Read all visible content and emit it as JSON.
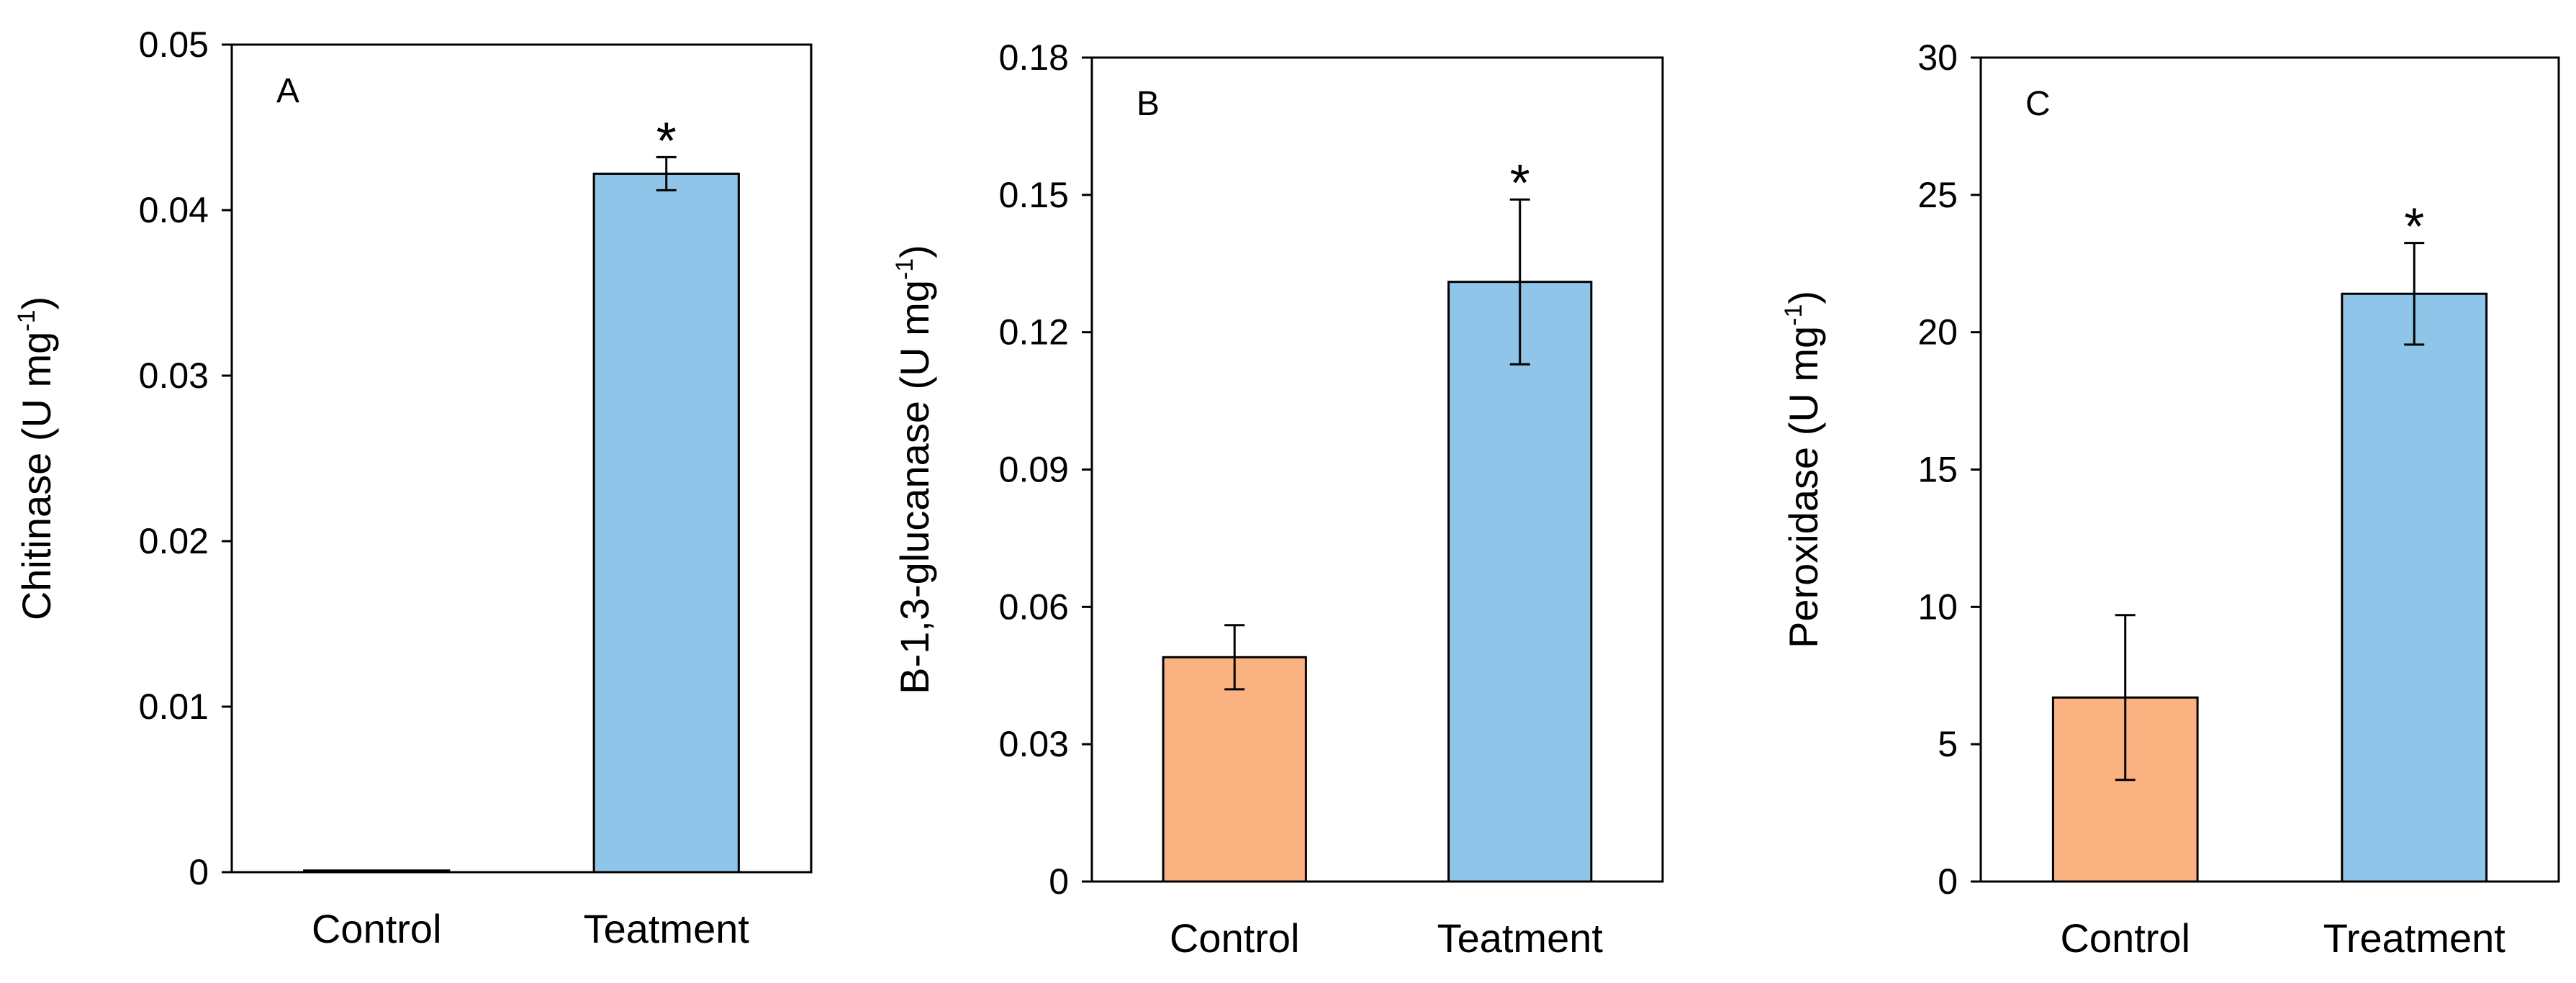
{
  "chart_data": [
    {
      "type": "bar",
      "panel_label": "A",
      "title": "",
      "ylabel": {
        "main": "Chitinase (U mg",
        "sup": "-1",
        "tail": ")"
      },
      "xlabel": "",
      "categories": [
        "Control",
        "Teatment"
      ],
      "values": [
        0.0001,
        0.0422
      ],
      "errors": [
        0,
        0.001
      ],
      "significance": [
        "",
        "*"
      ],
      "colors": [
        "#FBB281",
        "#8EC5E8"
      ],
      "ylim": [
        0,
        0.05
      ],
      "yticks": [
        0,
        0.01,
        0.02,
        0.03,
        0.04,
        0.05
      ],
      "ytick_labels": [
        "0",
        "0.01",
        "0.02",
        "0.03",
        "0.04",
        "0.05"
      ]
    },
    {
      "type": "bar",
      "panel_label": "B",
      "title": "",
      "ylabel": {
        "main": "B-1,3-glucanase (U mg",
        "sup": "-1",
        "tail": ")"
      },
      "xlabel": "",
      "categories": [
        "Control",
        "Teatment"
      ],
      "values": [
        0.049,
        0.131
      ],
      "errors": [
        0.007,
        0.018
      ],
      "significance": [
        "",
        "*"
      ],
      "colors": [
        "#FBB281",
        "#8EC5E8"
      ],
      "ylim": [
        0,
        0.18
      ],
      "yticks": [
        0,
        0.03,
        0.06,
        0.09,
        0.12,
        0.15,
        0.18
      ],
      "ytick_labels": [
        "0",
        "0.03",
        "0.06",
        "0.09",
        "0.12",
        "0.15",
        "0.18"
      ]
    },
    {
      "type": "bar",
      "panel_label": "C",
      "title": "",
      "ylabel": {
        "main": "Peroxidase (U mg",
        "sup": "-1",
        "tail": ")"
      },
      "xlabel": "",
      "categories": [
        "Control",
        "Treatment"
      ],
      "values": [
        6.7,
        21.4
      ],
      "errors": [
        3.0,
        1.85
      ],
      "significance": [
        "",
        "*"
      ],
      "colors": [
        "#FBB281",
        "#8EC5E8"
      ],
      "ylim": [
        0,
        30
      ],
      "yticks": [
        0,
        5,
        10,
        15,
        20,
        25,
        30
      ],
      "ytick_labels": [
        "0",
        "5",
        "10",
        "15",
        "20",
        "25",
        "30"
      ]
    }
  ]
}
